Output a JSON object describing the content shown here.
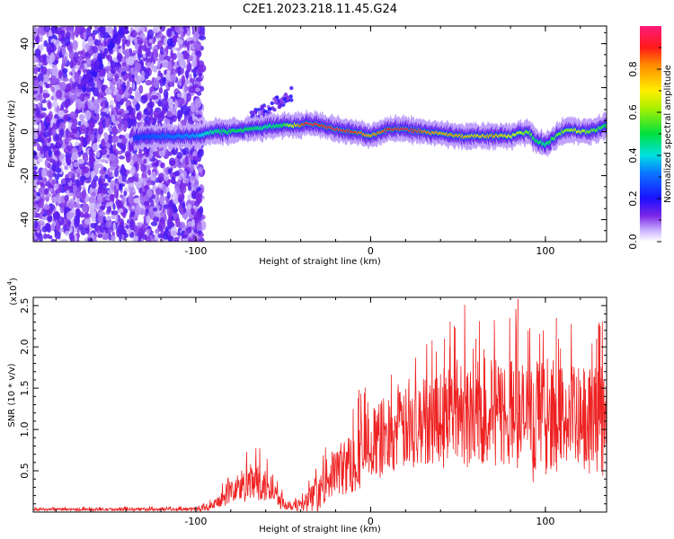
{
  "figure_title": "C2E1.2023.218.11.45.G24",
  "chart_data": [
    {
      "type": "heatmap",
      "title": "C2E1.2023.218.11.45.G24",
      "xlabel": "Height of straight line (km)",
      "ylabel": "Frequency (Hz)",
      "xlim": [
        -193,
        135
      ],
      "ylim": [
        -50,
        48
      ],
      "x_ticks": [
        -100,
        0,
        100
      ],
      "y_ticks": [
        -40,
        -20,
        0,
        20,
        40
      ],
      "x_tick_labels": [
        "-100",
        "0",
        "100"
      ],
      "y_tick_labels": [
        "-40",
        "-20",
        "0",
        "20",
        "40"
      ],
      "colorbar": {
        "label": "Normalized spectral amplitude",
        "range": [
          0,
          1
        ],
        "ticks": [
          0.0,
          0.2,
          0.4,
          0.6,
          0.8
        ],
        "tick_labels": [
          "0.0",
          "0.2",
          "0.4",
          "0.6",
          "0.8"
        ]
      },
      "noise_region_x": [
        -193,
        -100
      ],
      "signal_track": {
        "x": [
          -135,
          -120,
          -100,
          -90,
          -80,
          -70,
          -60,
          -50,
          -40,
          -35,
          -30,
          -20,
          -10,
          0,
          10,
          20,
          30,
          40,
          50,
          60,
          70,
          80,
          90,
          95,
          100,
          105,
          110,
          115,
          120,
          125,
          130,
          135
        ],
        "freq": [
          -3,
          -2,
          -2,
          0,
          0,
          1,
          2,
          3,
          3,
          4,
          3,
          1,
          0,
          -2,
          1,
          1,
          0,
          -1,
          -2,
          -2,
          -2,
          -2,
          0,
          -4,
          -6,
          -3,
          0,
          1,
          0,
          0,
          1,
          3
        ],
        "amplitude": [
          0.25,
          0.3,
          0.35,
          0.45,
          0.5,
          0.5,
          0.45,
          0.5,
          0.85,
          0.95,
          0.9,
          0.95,
          0.9,
          0.8,
          0.9,
          0.95,
          0.85,
          0.8,
          0.8,
          0.75,
          0.8,
          0.7,
          0.6,
          0.5,
          0.45,
          0.55,
          0.6,
          0.65,
          0.7,
          0.6,
          0.55,
          0.5
        ]
      },
      "diagonal_streak": {
        "x": [
          -165,
          -140
        ],
        "freq": [
          20,
          48
        ]
      },
      "upper_branch": {
        "x": [
          -70,
          -45
        ],
        "freq": [
          5,
          17
        ]
      }
    },
    {
      "type": "line",
      "xlabel": "Height of straight line (km)",
      "ylabel": "SNR (10 * v/v)",
      "y_multiplier_label": "(x10",
      "y_multiplier_exponent": "4",
      "xlim": [
        -193,
        135
      ],
      "ylim": [
        0,
        26000
      ],
      "x_ticks": [
        -100,
        0,
        100
      ],
      "y_ticks": [
        5000,
        10000,
        15000,
        20000,
        25000
      ],
      "x_tick_labels": [
        "-100",
        "0",
        "100"
      ],
      "y_tick_labels": [
        "0.5",
        "1.0",
        "1.5",
        "2.0",
        "2.5"
      ],
      "series": [
        {
          "name": "SNR",
          "color": "#ee2222",
          "envelope": {
            "x": [
              -193,
              -100,
              -90,
              -80,
              -75,
              -70,
              -65,
              -60,
              -55,
              -50,
              -45,
              -40,
              -35,
              -30,
              -25,
              -20,
              -15,
              -10,
              -5,
              0,
              10,
              20,
              30,
              40,
              50,
              60,
              70,
              80,
              90,
              100,
              110,
              120,
              130,
              135
            ],
            "mean": [
              300,
              350,
              700,
              2500,
              3000,
              3500,
              3300,
              3000,
              2500,
              1000,
              900,
              800,
              1500,
              2000,
              4000,
              5000,
              5500,
              6000,
              7500,
              8000,
              9500,
              10000,
              11000,
              12000,
              12500,
              12000,
              12000,
              12000,
              11500,
              11000,
              11500,
              11000,
              11000,
              10500
            ],
            "amp": [
              150,
              200,
              500,
              1500,
              2000,
              2500,
              2500,
              2000,
              1500,
              800,
              700,
              700,
              1500,
              1800,
              2500,
              3000,
              3500,
              4000,
              4500,
              4500,
              5000,
              5000,
              5500,
              6000,
              6500,
              6500,
              6500,
              7000,
              6500,
              6500,
              6500,
              6500,
              6500,
              6500
            ]
          },
          "peaks": [
            {
              "x": 84,
              "y": 25800
            },
            {
              "x": 106,
              "y": 23500
            },
            {
              "x": 131,
              "y": 22500
            },
            {
              "x": 129,
              "y": 21000
            },
            {
              "x": 60,
              "y": 21000
            },
            {
              "x": 42,
              "y": 21000
            },
            {
              "x": 45,
              "y": 20000
            },
            {
              "x": -7,
              "y": 14800
            }
          ]
        }
      ]
    }
  ]
}
